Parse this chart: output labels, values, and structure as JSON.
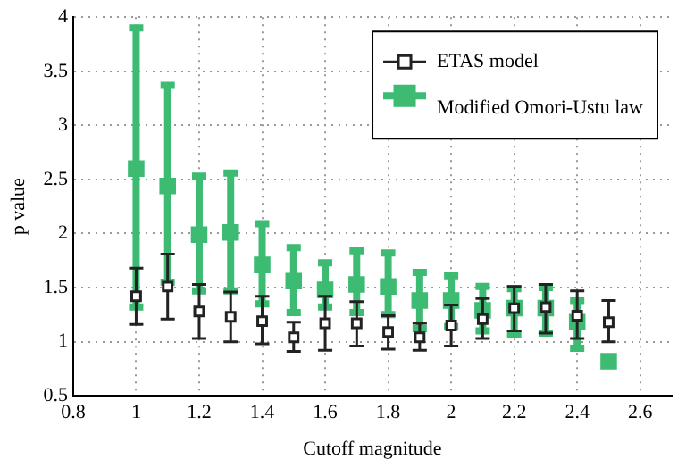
{
  "chart_data": {
    "type": "scatter",
    "xlabel": "Cutoff magnitude",
    "ylabel": "p value",
    "xlim": [
      0.8,
      2.7
    ],
    "xticks": [
      0.8,
      1,
      1.2,
      1.4,
      1.6,
      1.8,
      2,
      2.2,
      2.4,
      2.6
    ],
    "ylim": [
      0.5,
      4
    ],
    "yticks": [
      0.5,
      1,
      1.5,
      2,
      2.5,
      3,
      3.5,
      4
    ],
    "grid": true,
    "line_style": "dotted",
    "legend": "top right",
    "marker": "square",
    "series": [
      {
        "name": "ETAS model",
        "color": "#222222",
        "x": [
          1,
          1.1,
          1.2,
          1.3,
          1.4,
          1.5,
          1.6,
          1.7,
          1.8,
          1.9,
          2,
          2.1,
          2.2,
          2.3,
          2.4,
          2.5
        ],
        "values": [
          1.42,
          1.51,
          1.28,
          1.23,
          1.19,
          1.04,
          1.17,
          1.17,
          1.09,
          1.04,
          1.15,
          1.21,
          1.31,
          1.32,
          1.24,
          1.18
        ],
        "errors": [
          [
            1.16,
            1.68
          ],
          [
            1.21,
            1.81
          ],
          [
            1.03,
            1.53
          ],
          [
            1.0,
            1.46
          ],
          [
            0.98,
            1.42
          ],
          [
            0.91,
            1.18
          ],
          [
            0.92,
            1.42
          ],
          [
            0.96,
            1.37
          ],
          [
            0.93,
            1.24
          ],
          [
            0.92,
            1.17
          ],
          [
            0.96,
            1.34
          ],
          [
            1.03,
            1.4
          ],
          [
            1.1,
            1.51
          ],
          [
            1.08,
            1.53
          ],
          [
            1.03,
            1.47
          ],
          [
            1.0,
            1.38
          ]
        ]
      },
      {
        "name": "Modified Omori-Ustu law",
        "color": "#3dbb73",
        "x": [
          1,
          1.1,
          1.2,
          1.3,
          1.4,
          1.5,
          1.6,
          1.7,
          1.8,
          1.9,
          2,
          2.1,
          2.2,
          2.3,
          2.4,
          2.5
        ],
        "values": [
          2.6,
          2.44,
          1.99,
          2.01,
          1.71,
          1.56,
          1.48,
          1.53,
          1.51,
          1.38,
          1.38,
          1.29,
          1.31,
          1.31,
          1.18,
          0.82
        ],
        "errors": [
          [
            1.32,
            3.9
          ],
          [
            1.55,
            3.37
          ],
          [
            1.47,
            2.53
          ],
          [
            1.47,
            2.56
          ],
          [
            1.35,
            2.09
          ],
          [
            1.27,
            1.87
          ],
          [
            1.32,
            1.73
          ],
          [
            1.27,
            1.84
          ],
          [
            1.25,
            1.82
          ],
          [
            1.12,
            1.64
          ],
          [
            1.14,
            1.61
          ],
          [
            1.1,
            1.51
          ],
          [
            1.07,
            1.49
          ],
          [
            1.08,
            1.5
          ],
          [
            0.94,
            1.38
          ],
          null
        ]
      }
    ]
  }
}
